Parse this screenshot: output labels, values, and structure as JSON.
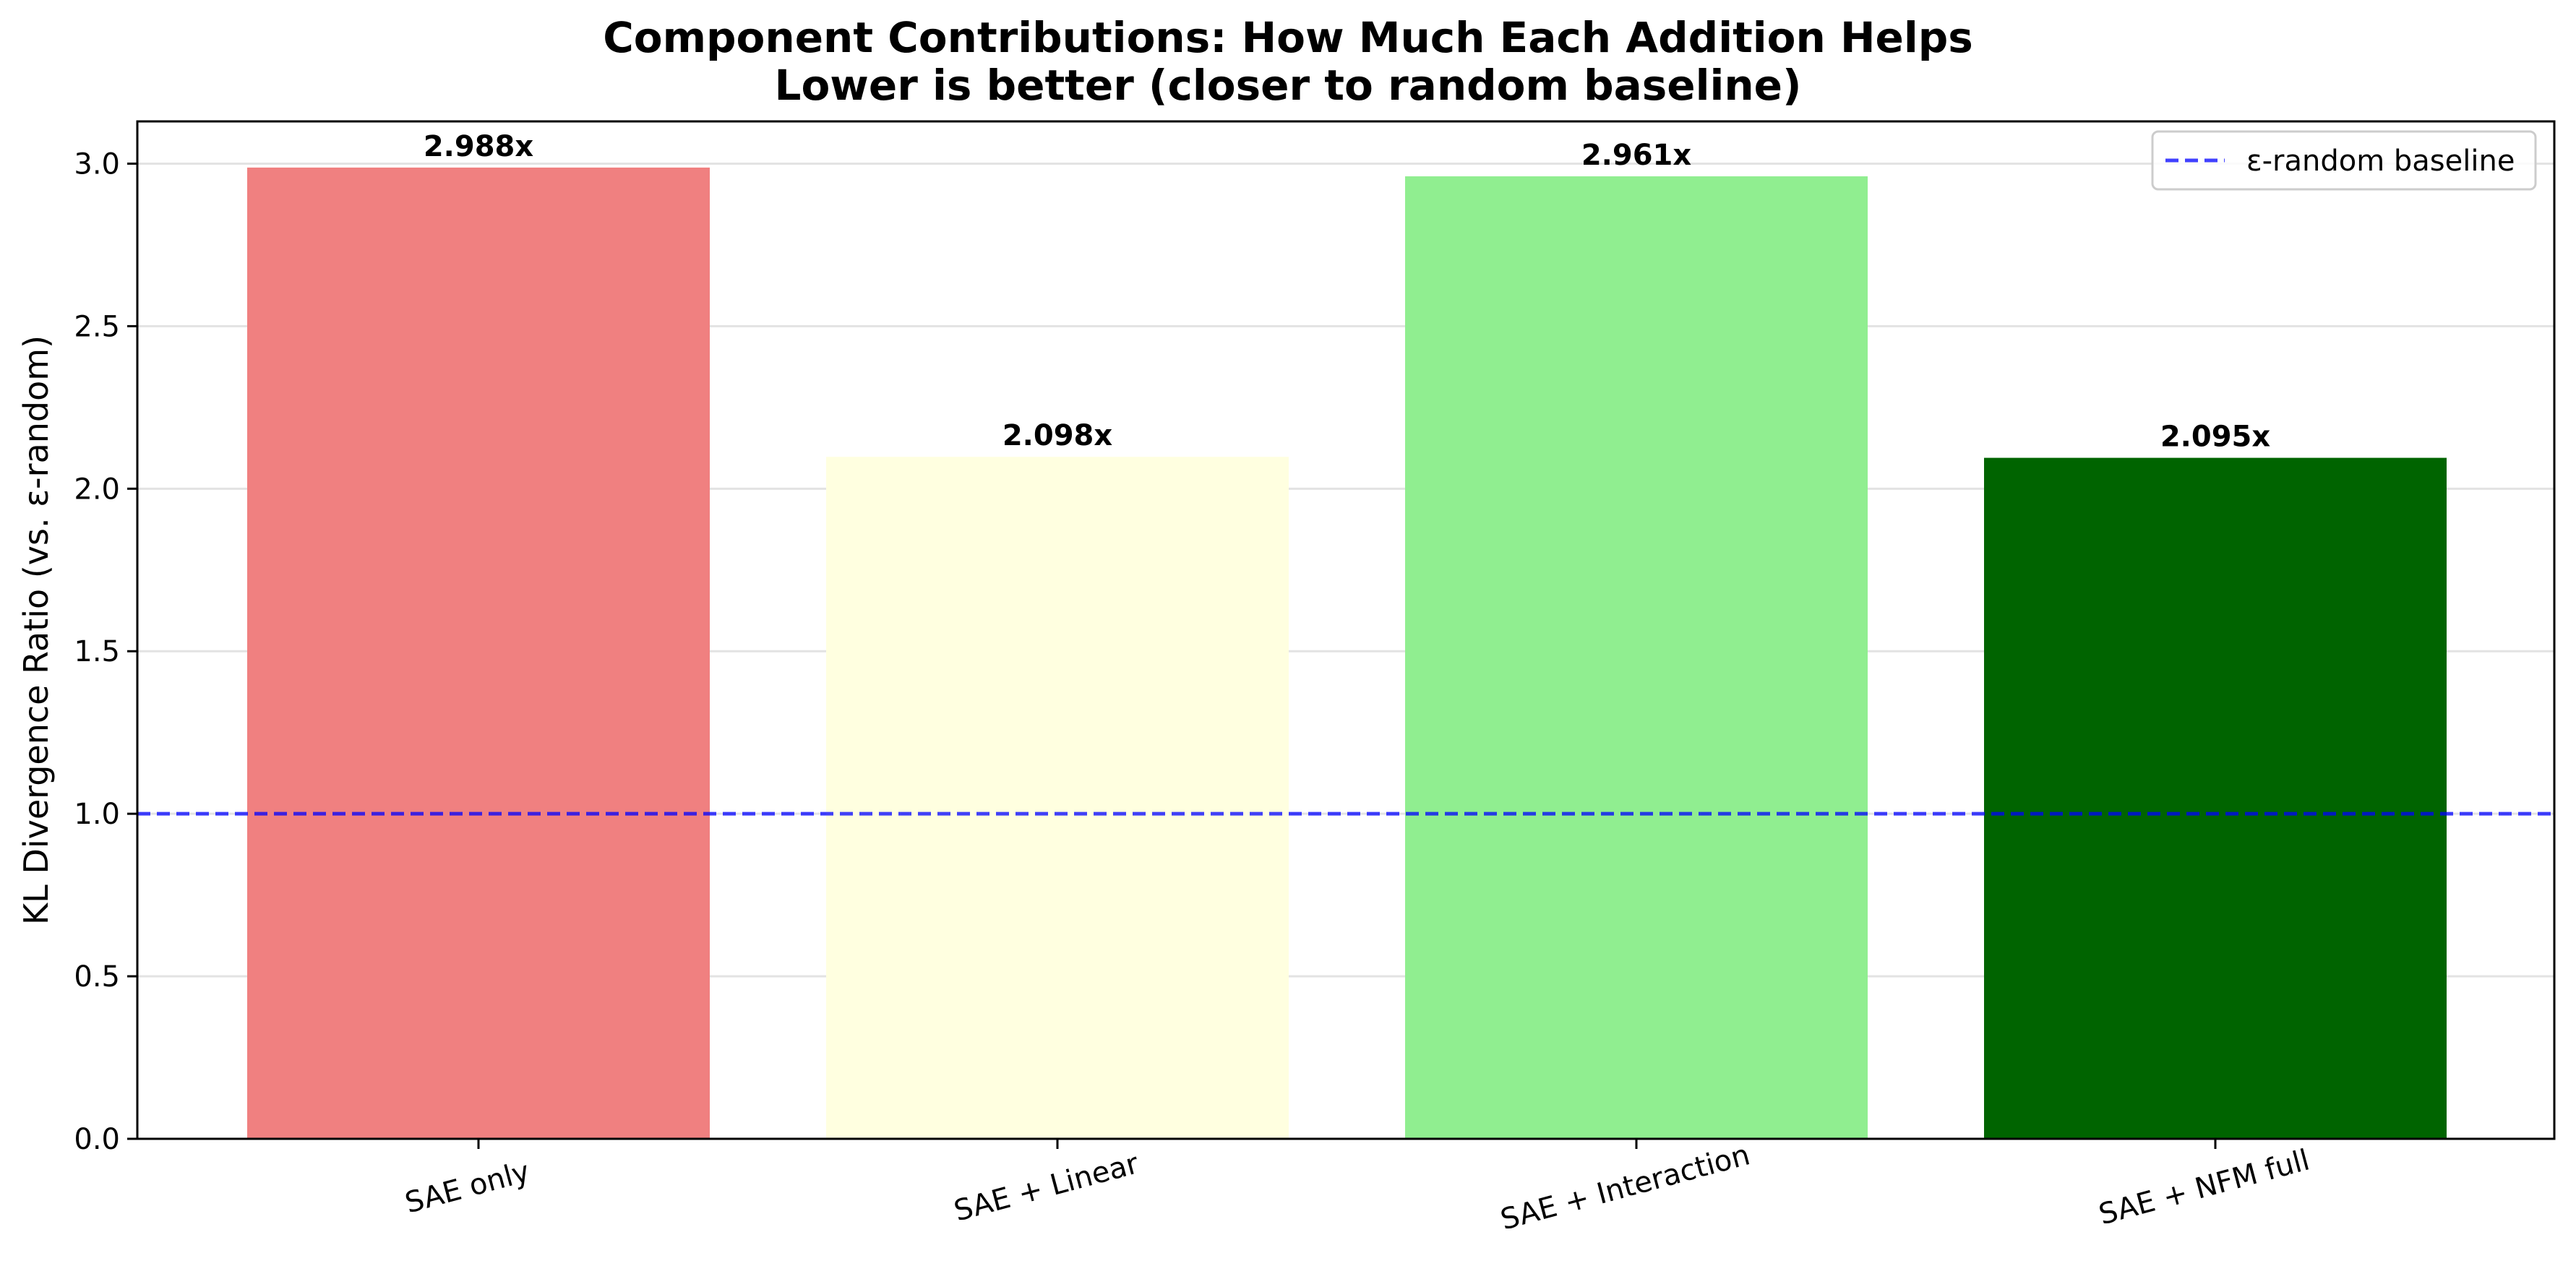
{
  "chart_data": {
    "type": "bar",
    "title": "Component Contributions: How Much Each Addition Helps",
    "subtitle": "Lower is better (closer to random baseline)",
    "xlabel": "",
    "ylabel": "KL Divergence Ratio (vs. ε-random)",
    "categories": [
      "SAE only",
      "SAE + Linear",
      "SAE + Interaction",
      "SAE + NFM full"
    ],
    "values": [
      2.988,
      2.098,
      2.961,
      2.095
    ],
    "value_labels": [
      "2.988x",
      "2.098x",
      "2.961x",
      "2.095x"
    ],
    "colors": [
      "#f08080",
      "#ffffe0",
      "#90ee90",
      "#006400"
    ],
    "ylim": [
      0,
      3.13
    ],
    "yticks": [
      0.0,
      0.5,
      1.0,
      1.5,
      2.0,
      2.5,
      3.0
    ],
    "ytick_labels": [
      "0.0",
      "0.5",
      "1.0",
      "1.5",
      "2.0",
      "2.5",
      "3.0"
    ],
    "grid": "horizontal",
    "baseline": {
      "value": 1.0,
      "label": "ε-random baseline",
      "color": "#0000ff",
      "style": "dashed"
    },
    "legend": {
      "placement": "top-right"
    }
  }
}
